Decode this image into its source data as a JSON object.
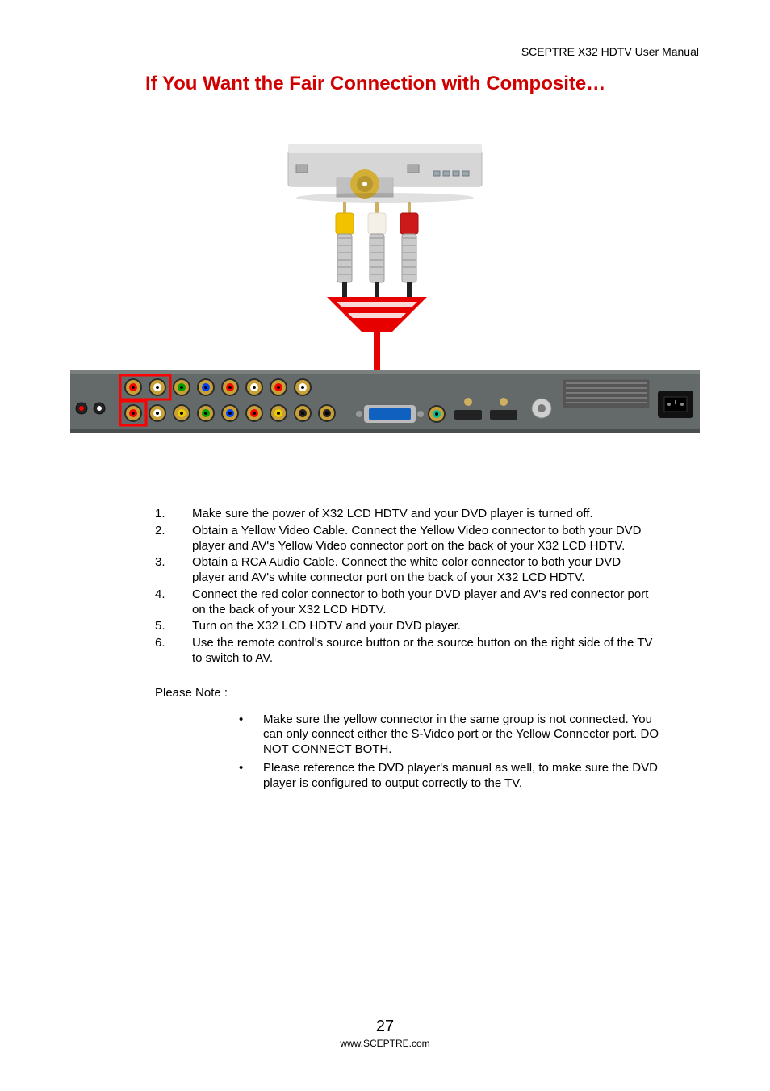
{
  "header": "SCEPTRE X32 HDTV User Manual",
  "title": "If You Want the Fair Connection with Composite…",
  "title_color": "#d00000",
  "figure": {
    "dvd": {
      "body_color": "#d6d6d6",
      "body_highlight": "#e8e8e8",
      "body_shadow": "#b8b8b8",
      "tray_color": "#c0c0c0",
      "disc_outer": "#d4af37",
      "disc_inner": "#b8962e"
    },
    "rca": {
      "plugs": [
        {
          "color": "#f2c200",
          "inner": "#d9a900"
        },
        {
          "color": "#f4f0e8",
          "inner": "#e0dccf"
        },
        {
          "color": "#cc1a1a",
          "inner": "#a81212"
        }
      ],
      "plug_body": "#cacaca",
      "pin": "#d0b060",
      "funnel_color": "#e60000",
      "stripe_color": "#ffffff"
    },
    "panel": {
      "bg": "#646a6a",
      "bg_light": "#7a807e",
      "highlight_box": "#ff0000",
      "jack_ring": "#c8a038",
      "jacks_row1": [
        "#ff0000",
        "#ffffff",
        "#00a000",
        "#0040ff",
        "#ff0000",
        "#ffffff",
        "#ff0000",
        "#ffffff"
      ],
      "jacks_row2": [
        "#ff0000",
        "#ffffff",
        "#eecc00",
        "#00a000",
        "#0040ff",
        "#ff0000",
        "#eecc00",
        "#222222",
        "#222222"
      ],
      "vga_body": "#1060c0",
      "power_body": "#111111",
      "side_jacks": [
        "#ff0000",
        "#ffffff"
      ]
    }
  },
  "steps": [
    "Make sure the power of X32 LCD HDTV and your DVD player is turned off.",
    "Obtain a Yellow Video Cable. Connect the Yellow Video connector to both your DVD player and AV's Yellow Video connector port on the back of your X32 LCD HDTV.",
    "Obtain a RCA Audio Cable.  Connect the white color connector to both your DVD player and AV's white connector port on the back of your X32 LCD HDTV.",
    "Connect the red color connector to both your DVD player and AV's red connector port on the back of your X32 LCD HDTV.",
    "Turn on the X32 LCD HDTV and your DVD player.",
    "Use the remote control's source button or the source button on the right side of the TV to switch to AV."
  ],
  "note_label": "Please Note :",
  "notes": [
    "Make sure the yellow connector in the same group is not connected.  You can only connect either the S-Video port or the Yellow Connector port.  DO NOT CONNECT BOTH.",
    "Please reference the DVD player's manual as well, to make sure the DVD player is configured to output correctly to the TV."
  ],
  "footer": {
    "page_number": "27",
    "url": "www.SCEPTRE.com"
  }
}
